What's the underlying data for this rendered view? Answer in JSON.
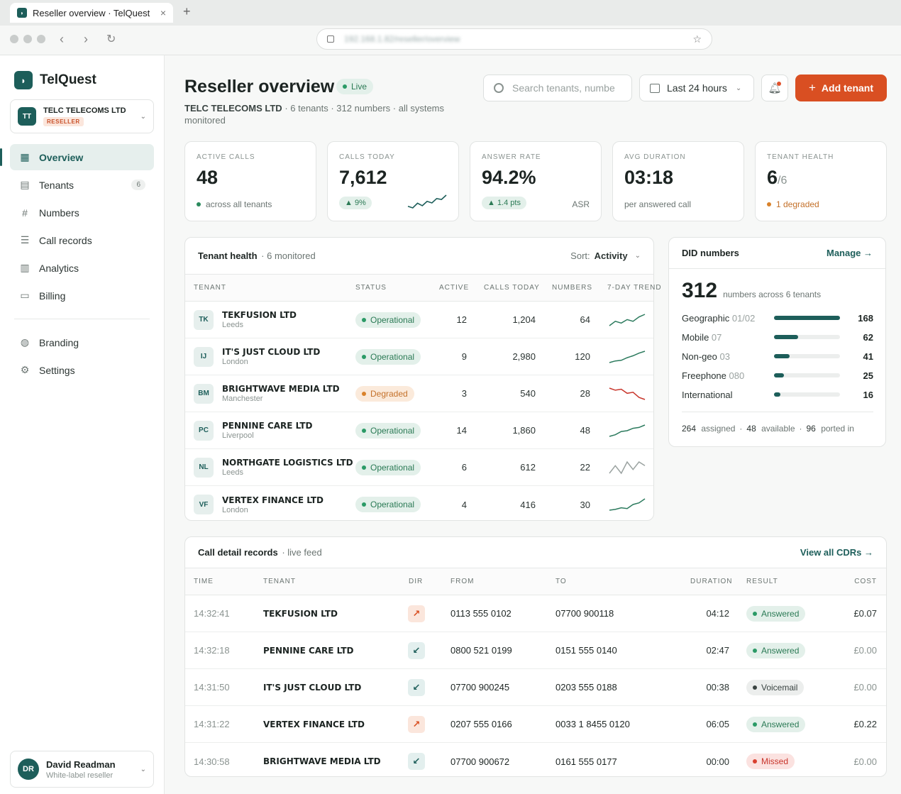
{
  "browser": {
    "tab_title": "Reseller overview · TelQuest",
    "url": "192.168.1.82/reseller/overview"
  },
  "sidebar": {
    "brand": "TelQuest",
    "org": {
      "initials": "TT",
      "name": "TELC TELECOMS LTD",
      "role": "RESELLER"
    },
    "nav": [
      {
        "label": "Overview",
        "icon": "grid-icon",
        "glyph": "▦",
        "active": true
      },
      {
        "label": "Tenants",
        "icon": "building-icon",
        "glyph": "▤",
        "count": "6"
      },
      {
        "label": "Numbers",
        "icon": "hash-icon",
        "glyph": "#"
      },
      {
        "label": "Call records",
        "icon": "list-icon",
        "glyph": "☰"
      },
      {
        "label": "Analytics",
        "icon": "chart-icon",
        "glyph": "▥"
      },
      {
        "label": "Billing",
        "icon": "card-icon",
        "glyph": "▭"
      }
    ],
    "nav2": [
      {
        "label": "Branding",
        "icon": "palette-icon",
        "glyph": "◍"
      },
      {
        "label": "Settings",
        "icon": "gear-icon",
        "glyph": "⚙"
      }
    ],
    "user": {
      "initials": "DR",
      "name": "David Readman",
      "role": "White-label reseller"
    }
  },
  "header": {
    "title": "Reseller overview",
    "live": "Live",
    "sub_org": "TELC TELECOMS LTD",
    "sub_rest": " · 6 tenants · 312 numbers · all systems monitored",
    "search_placeholder": "Search tenants, numbe",
    "range": "Last 24 hours",
    "add_label": "Add tenant"
  },
  "kpis": [
    {
      "label": "ACTIVE CALLS",
      "value": "48",
      "foot": "across all tenants"
    },
    {
      "label": "CALLS TODAY",
      "value": "7,612",
      "delta": "▲ 9%",
      "spark": [
        3,
        2.5,
        4,
        3.2,
        4.6,
        4.1,
        5.5,
        5.2,
        6.6
      ]
    },
    {
      "label": "ANSWER RATE",
      "value": "94.2%",
      "delta": "▲ 1.4 pts",
      "side": "ASR"
    },
    {
      "label": "AVG DURATION",
      "value": "03:18",
      "foot": "per answered call"
    },
    {
      "label": "TENANT HEALTH",
      "value": "6",
      "denom": "/6",
      "foot": "1 degraded"
    }
  ],
  "tenant_health": {
    "title": "Tenant health",
    "sub": "· 6 monitored",
    "sort_label": "Sort:",
    "sort_value": "Activity",
    "columns": [
      "TENANT",
      "STATUS",
      "ACTIVE",
      "CALLS TODAY",
      "NUMBERS",
      "7-DAY TREND"
    ],
    "rows": [
      {
        "initials": "TK",
        "name": "TEKFUSION LTD",
        "city": "Leeds",
        "status": "Operational",
        "kind": "ok",
        "active": "12",
        "calls": "1,204",
        "numbers": "64",
        "trend": [
          2,
          3,
          2.6,
          3.4,
          3,
          4,
          4.6
        ],
        "color": "#2b7a5d"
      },
      {
        "initials": "IJ",
        "name": "IT'S JUST CLOUD LTD",
        "city": "London",
        "status": "Operational",
        "kind": "ok",
        "active": "9",
        "calls": "2,980",
        "numbers": "120",
        "trend": [
          1.5,
          2,
          2.2,
          3,
          3.6,
          4.4,
          5
        ],
        "color": "#2b7a5d"
      },
      {
        "initials": "BM",
        "name": "BRIGHTWAVE MEDIA LTD",
        "city": "Manchester",
        "status": "Degraded",
        "kind": "warn",
        "active": "3",
        "calls": "540",
        "numbers": "28",
        "trend": [
          5,
          4.6,
          4.8,
          4,
          4.2,
          3.2,
          2.8
        ],
        "color": "#c8352b"
      },
      {
        "initials": "PC",
        "name": "PENNINE CARE LTD",
        "city": "Liverpool",
        "status": "Operational",
        "kind": "ok",
        "active": "14",
        "calls": "1,860",
        "numbers": "48",
        "trend": [
          2,
          2.4,
          3.2,
          3.4,
          4,
          4.2,
          4.8
        ],
        "color": "#2b7a5d"
      },
      {
        "initials": "NL",
        "name": "NORTHGATE LOGISTICS LTD",
        "city": "Leeds",
        "status": "Operational",
        "kind": "ok",
        "active": "6",
        "calls": "612",
        "numbers": "22",
        "trend": [
          3.2,
          3.6,
          3.2,
          3.8,
          3.4,
          3.8,
          3.6
        ],
        "color": "#9aa2a0"
      },
      {
        "initials": "VF",
        "name": "VERTEX FINANCE LTD",
        "city": "London",
        "status": "Operational",
        "kind": "ok",
        "active": "4",
        "calls": "416",
        "numbers": "30",
        "trend": [
          2,
          2.2,
          2.6,
          2.4,
          3.4,
          3.8,
          4.8
        ],
        "color": "#2b7a5d"
      }
    ]
  },
  "did": {
    "title": "DID numbers",
    "manage": "Manage →",
    "total": "312",
    "total_sub": "numbers across 6 tenants",
    "rows": [
      {
        "label": "Geographic",
        "prefix": "01/02",
        "count": "168",
        "frac": 1.0
      },
      {
        "label": "Mobile",
        "prefix": "07",
        "count": "62",
        "frac": 0.37
      },
      {
        "label": "Non-geo",
        "prefix": "03",
        "count": "41",
        "frac": 0.24
      },
      {
        "label": "Freephone",
        "prefix": "080",
        "count": "25",
        "frac": 0.15
      },
      {
        "label": "International",
        "prefix": "",
        "count": "16",
        "frac": 0.1
      }
    ],
    "foot": [
      {
        "n": "264",
        "t": "assigned"
      },
      {
        "n": "48",
        "t": "available"
      },
      {
        "n": "96",
        "t": "ported in"
      }
    ]
  },
  "cdr": {
    "title": "Call detail records",
    "sub": "· live feed",
    "view_all": "View all CDRs →",
    "columns": [
      "TIME",
      "TENANT",
      "DIR",
      "FROM",
      "TO",
      "DURATION",
      "RESULT",
      "COST"
    ],
    "rows": [
      {
        "time": "14:32:41",
        "tenant": "TEKFUSION LTD",
        "dir": "out",
        "from": "0113 555 0102",
        "to": "07700 900118",
        "duration": "04:12",
        "result": "Answered",
        "kind": "ok",
        "cost": "£0.07",
        "zero": false
      },
      {
        "time": "14:32:18",
        "tenant": "PENNINE CARE LTD",
        "dir": "in",
        "from": "0800 521 0199",
        "to": "0151 555 0140",
        "duration": "02:47",
        "result": "Answered",
        "kind": "ok",
        "cost": "£0.00",
        "zero": true
      },
      {
        "time": "14:31:50",
        "tenant": "IT'S JUST CLOUD LTD",
        "dir": "in",
        "from": "07700 900245",
        "to": "0203 555 0188",
        "duration": "00:38",
        "result": "Voicemail",
        "kind": "neutral",
        "cost": "£0.00",
        "zero": true
      },
      {
        "time": "14:31:22",
        "tenant": "VERTEX FINANCE LTD",
        "dir": "out",
        "from": "0207 555 0166",
        "to": "0033 1 8455 0120",
        "duration": "06:05",
        "result": "Answered",
        "kind": "ok",
        "cost": "£0.22",
        "zero": false
      },
      {
        "time": "14:30:58",
        "tenant": "BRIGHTWAVE MEDIA LTD",
        "dir": "in",
        "from": "07700 900672",
        "to": "0161 555 0177",
        "duration": "00:00",
        "result": "Missed",
        "kind": "bad",
        "cost": "£0.00",
        "zero": true
      }
    ]
  }
}
